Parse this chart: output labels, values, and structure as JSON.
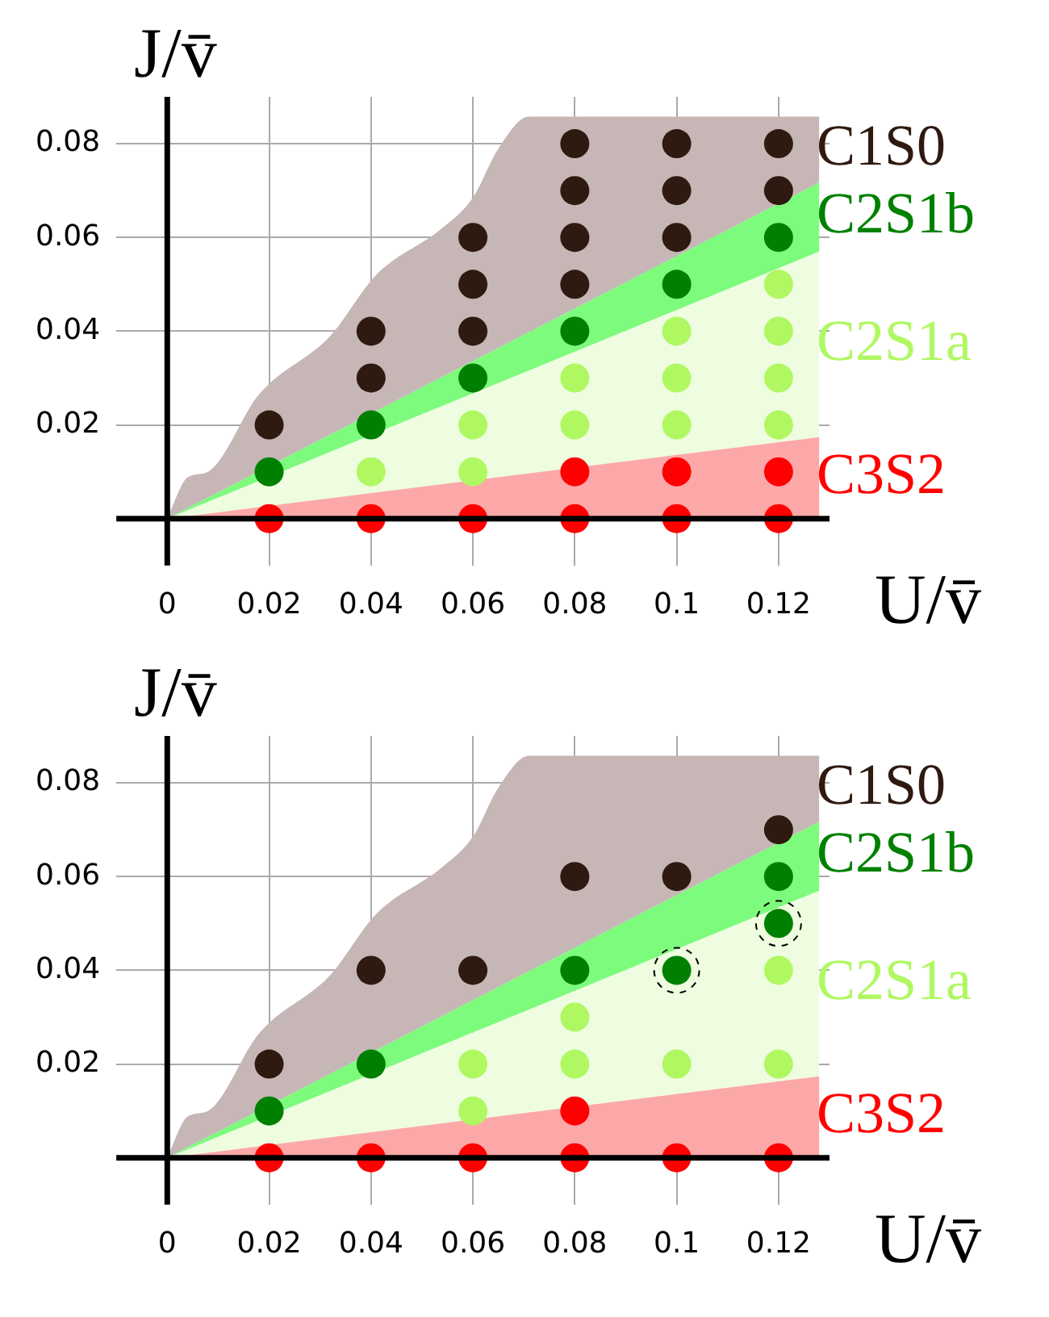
{
  "chart_data": [
    {
      "type": "scatter",
      "xlabel": "U/v̄",
      "ylabel": "J/v̄",
      "xlim": [
        -0.01,
        0.13
      ],
      "ylim": [
        -0.01,
        0.09
      ],
      "xticks": [
        0,
        0.02,
        0.04,
        0.06,
        0.08,
        0.1,
        0.12
      ],
      "yticks": [
        {
          "value": 0,
          "label": null
        },
        0.02,
        0.04,
        0.06,
        0.08
      ],
      "grid": true,
      "marker": "circle",
      "series": [
        {
          "type": "area",
          "marker": "none",
          "color": "#fca8a8",
          "x": [
            0,
            0.128
          ],
          "values": [
            0,
            0.0174
          ]
        },
        {
          "type": "area",
          "marker": "none",
          "color": "#eefde0",
          "x": [
            0,
            0.128
          ],
          "values": [
            0,
            0.057
          ]
        },
        {
          "type": "area",
          "marker": "none",
          "color": "#7dfb7d",
          "x": [
            0,
            0.128
          ],
          "values": [
            0,
            0.0717
          ]
        },
        {
          "type": "area",
          "marker": "none",
          "color": "#c6b6b6",
          "x": [
            0,
            0.004,
            0.008,
            0.018,
            0.032,
            0.041,
            0.054,
            0.06,
            0.065,
            0.071,
            0.128
          ],
          "values": [
            0,
            0.0088,
            0.01,
            0.0265,
            0.039,
            0.052,
            0.062,
            0.0685,
            0.079,
            0.0858,
            0.0858
          ]
        },
        {
          "name": "C3S2",
          "color": "#ff0000",
          "x": [
            0.02,
            0.04,
            0.06,
            0.08,
            0.1,
            0.12,
            0.08,
            0.1,
            0.12
          ],
          "values": [
            0,
            0,
            0,
            0,
            0,
            0,
            0.01,
            0.01,
            0.01
          ]
        },
        {
          "name": "C2S1a",
          "color": "#b0f862",
          "x": [
            0.04,
            0.06,
            0.06,
            0.08,
            0.08,
            0.1,
            0.1,
            0.1,
            0.12,
            0.12,
            0.12,
            0.12
          ],
          "values": [
            0.01,
            0.01,
            0.02,
            0.02,
            0.03,
            0.02,
            0.03,
            0.04,
            0.02,
            0.03,
            0.04,
            0.05
          ]
        },
        {
          "name": "C2S1b",
          "color": "#008000",
          "x": [
            0.02,
            0.04,
            0.06,
            0.08,
            0.1,
            0.12
          ],
          "values": [
            0.01,
            0.02,
            0.03,
            0.04,
            0.05,
            0.06
          ]
        },
        {
          "name": "C1S0",
          "color": "#2e1a10",
          "x": [
            0.02,
            0.04,
            0.04,
            0.06,
            0.06,
            0.06,
            0.08,
            0.08,
            0.08,
            0.08,
            0.1,
            0.1,
            0.1,
            0.12,
            0.12
          ],
          "values": [
            0.02,
            0.03,
            0.04,
            0.04,
            0.05,
            0.06,
            0.05,
            0.06,
            0.07,
            0.08,
            0.06,
            0.07,
            0.08,
            0.07,
            0.08
          ]
        }
      ]
    },
    {
      "type": "scatter",
      "xlabel": "U/v̄",
      "ylabel": "J/v̄",
      "xlim": [
        -0.01,
        0.13
      ],
      "ylim": [
        -0.01,
        0.09
      ],
      "xticks": [
        0,
        0.02,
        0.04,
        0.06,
        0.08,
        0.1,
        0.12
      ],
      "yticks": [
        {
          "value": 0,
          "label": null
        },
        0.02,
        0.04,
        0.06,
        0.08
      ],
      "grid": true,
      "marker": "circle",
      "series": [
        {
          "type": "area",
          "marker": "none",
          "color": "#fca8a8",
          "x": [
            0,
            0.128
          ],
          "values": [
            0,
            0.0174
          ]
        },
        {
          "type": "area",
          "marker": "none",
          "color": "#eefde0",
          "x": [
            0,
            0.128
          ],
          "values": [
            0,
            0.057
          ]
        },
        {
          "type": "area",
          "marker": "none",
          "color": "#7dfb7d",
          "x": [
            0,
            0.128
          ],
          "values": [
            0,
            0.0717
          ]
        },
        {
          "type": "area",
          "marker": "none",
          "color": "#c6b6b6",
          "x": [
            0,
            0.004,
            0.008,
            0.018,
            0.032,
            0.041,
            0.054,
            0.06,
            0.065,
            0.071,
            0.128
          ],
          "values": [
            0,
            0.0088,
            0.01,
            0.0265,
            0.039,
            0.052,
            0.062,
            0.0685,
            0.079,
            0.0858,
            0.0858
          ]
        },
        {
          "name": "C3S2",
          "color": "#ff0000",
          "x": [
            0.02,
            0.04,
            0.06,
            0.08,
            0.1,
            0.12,
            0.08
          ],
          "values": [
            0,
            0,
            0,
            0,
            0,
            0,
            0.01
          ]
        },
        {
          "name": "C2S1a",
          "color": "#b0f862",
          "x": [
            0.06,
            0.06,
            0.08,
            0.08,
            0.1,
            0.12,
            0.12
          ],
          "values": [
            0.01,
            0.02,
            0.02,
            0.03,
            0.02,
            0.02,
            0.04
          ]
        },
        {
          "name": "C2S1b",
          "color": "#008000",
          "x": [
            0.02,
            0.04,
            0.08,
            0.1,
            0.12,
            0.12
          ],
          "values": [
            0.01,
            0.02,
            0.04,
            0.04,
            0.05,
            0.06
          ]
        },
        {
          "name": "C1S0",
          "color": "#2e1a10",
          "x": [
            0.02,
            0.04,
            0.06,
            0.08,
            0.1,
            0.12
          ],
          "values": [
            0.02,
            0.04,
            0.04,
            0.06,
            0.06,
            0.07
          ]
        },
        {
          "color": "#000000",
          "line_style": "dashed",
          "x": [
            0.1,
            0.12
          ],
          "values": [
            0.04,
            0.05
          ]
        }
      ]
    }
  ]
}
